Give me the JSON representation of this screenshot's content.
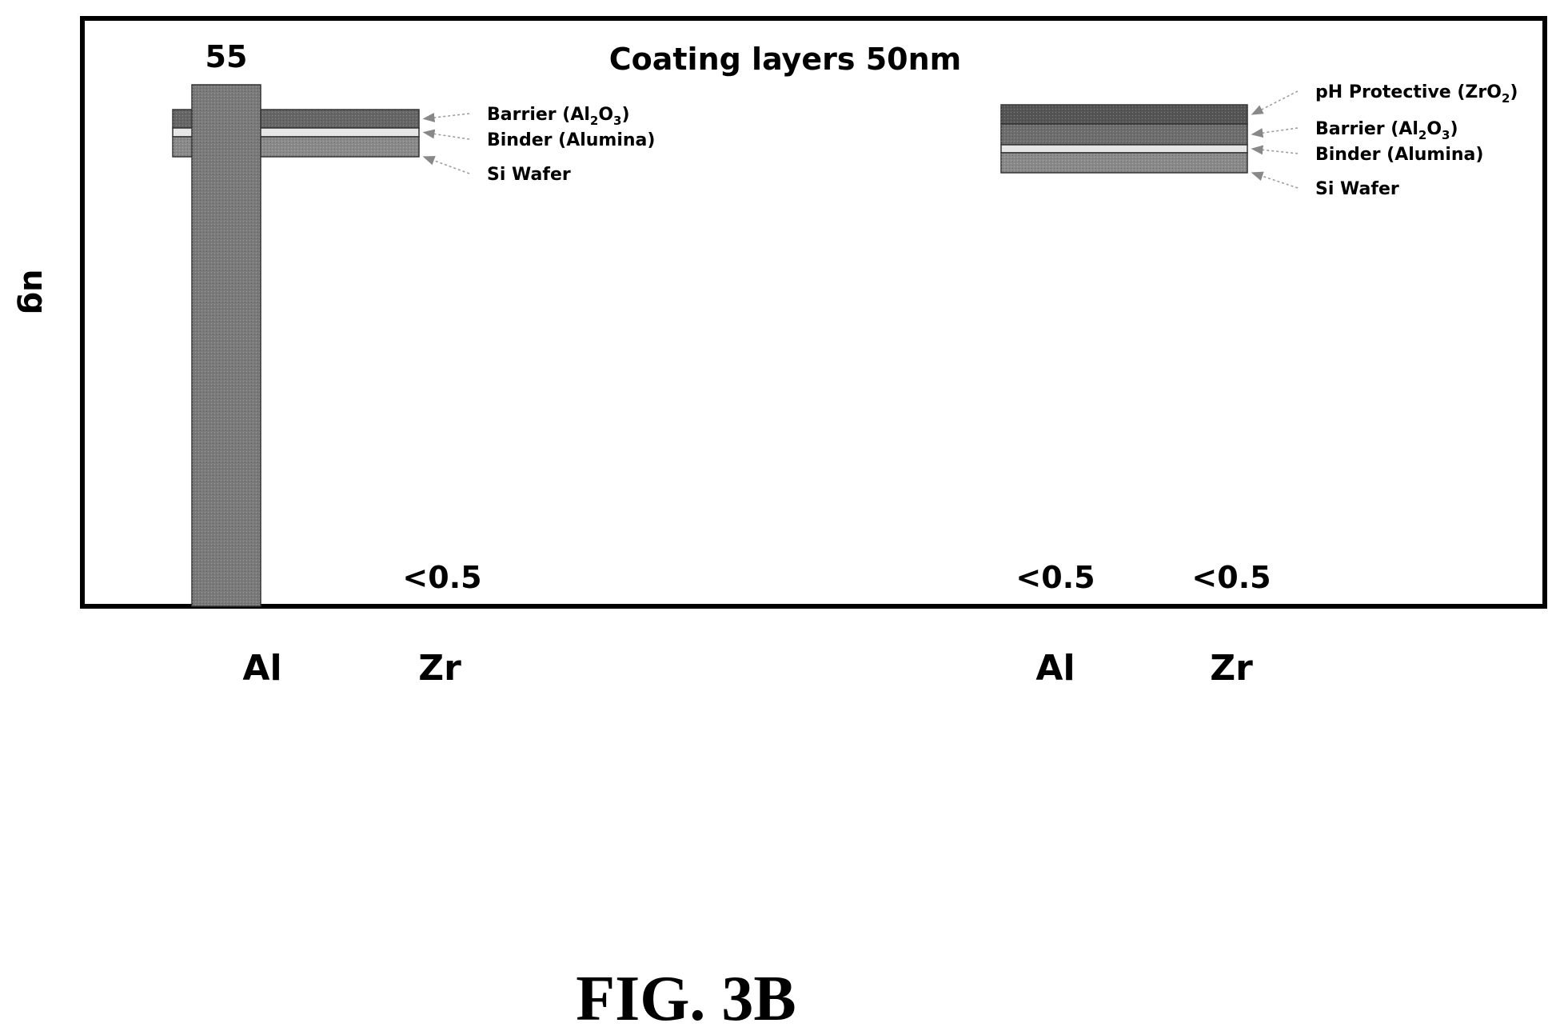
{
  "chart_data": {
    "type": "bar",
    "title": "Coating layers 50nm",
    "ylabel": "ug",
    "xlabel": "",
    "ylim": [
      0,
      62
    ],
    "grid": false,
    "legend": "none",
    "bar_color": "#7a7a7a",
    "groups": [
      {
        "layers": [
          {
            "label": "Barrier (Al2O3)",
            "label_base": "Barrier (Al",
            "sub1": "2",
            "mid": "O",
            "sub2": "3",
            "tail": ")",
            "color": "#666666"
          },
          {
            "label": "Binder (Alumina)",
            "color": "#e6e6e6"
          },
          {
            "label": "Si Wafer",
            "color": "#8a8a8a"
          }
        ],
        "bars": [
          {
            "category": "Al",
            "value": 55,
            "value_label": "55"
          },
          {
            "category": "Zr",
            "value": 0.5,
            "value_label": "<0.5"
          }
        ]
      },
      {
        "layers": [
          {
            "label": "pH Protective (ZrO2)",
            "label_base": "pH Protective (ZrO",
            "sub1": "2",
            "tail": ")",
            "color": "#555555"
          },
          {
            "label": "Barrier (Al2O3)",
            "label_base": "Barrier (Al",
            "sub1": "2",
            "mid": "O",
            "sub2": "3",
            "tail": ")",
            "color": "#6e6e6e"
          },
          {
            "label": "Binder (Alumina)",
            "color": "#e6e6e6"
          },
          {
            "label": "Si Wafer",
            "color": "#8a8a8a"
          }
        ],
        "bars": [
          {
            "category": "Al",
            "value": 0.5,
            "value_label": "<0.5"
          },
          {
            "category": "Zr",
            "value": 0.5,
            "value_label": "<0.5"
          }
        ]
      }
    ]
  },
  "figure_label": "FIG. 3B"
}
